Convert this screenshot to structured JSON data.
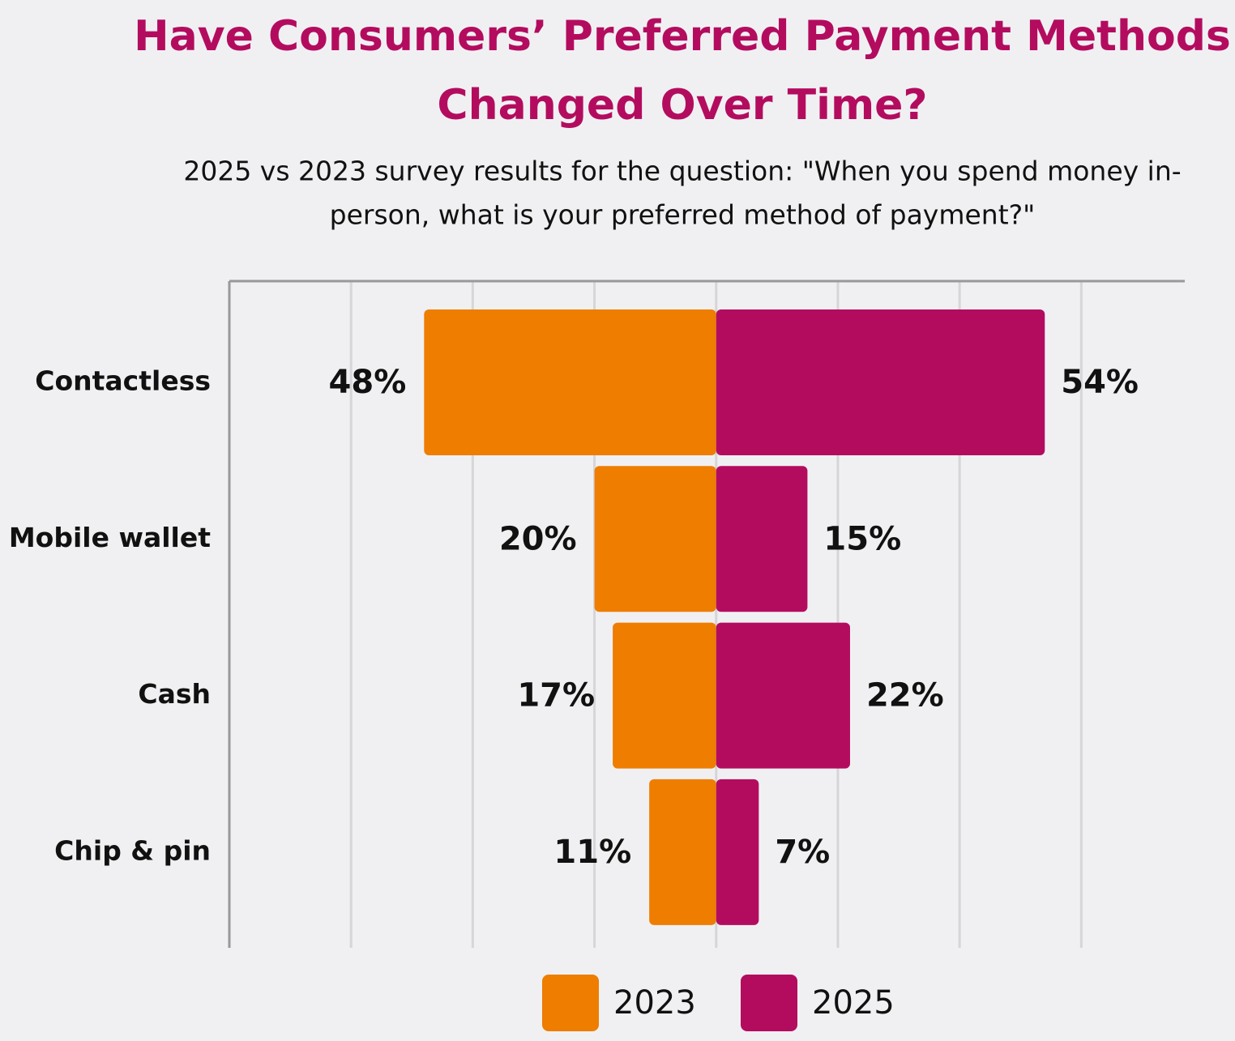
{
  "chart_data": {
    "type": "butterfly",
    "title": [
      "Have Consumers’ Preferred Payment Methods",
      "Changed Over Time?"
    ],
    "subtitle": [
      "2025 vs 2023 survey results for the question: \"When you spend money in-",
      "person, what is your preferred method of payment?\""
    ],
    "categories": [
      "Contactless",
      "Mobile wallet",
      "Cash",
      "Chip & pin"
    ],
    "series": [
      {
        "name": "2023",
        "color": "#ee7d00",
        "values": [
          48,
          20,
          17,
          11
        ],
        "value_labels": [
          "48%",
          "20%",
          "17%",
          "11%"
        ]
      },
      {
        "name": "2025",
        "color": "#b30c5f",
        "values": [
          54,
          15,
          22,
          7
        ],
        "value_labels": [
          "54%",
          "15%",
          "22%",
          "7%"
        ]
      }
    ],
    "xlim": [
      -80,
      77
    ],
    "grid": true
  }
}
